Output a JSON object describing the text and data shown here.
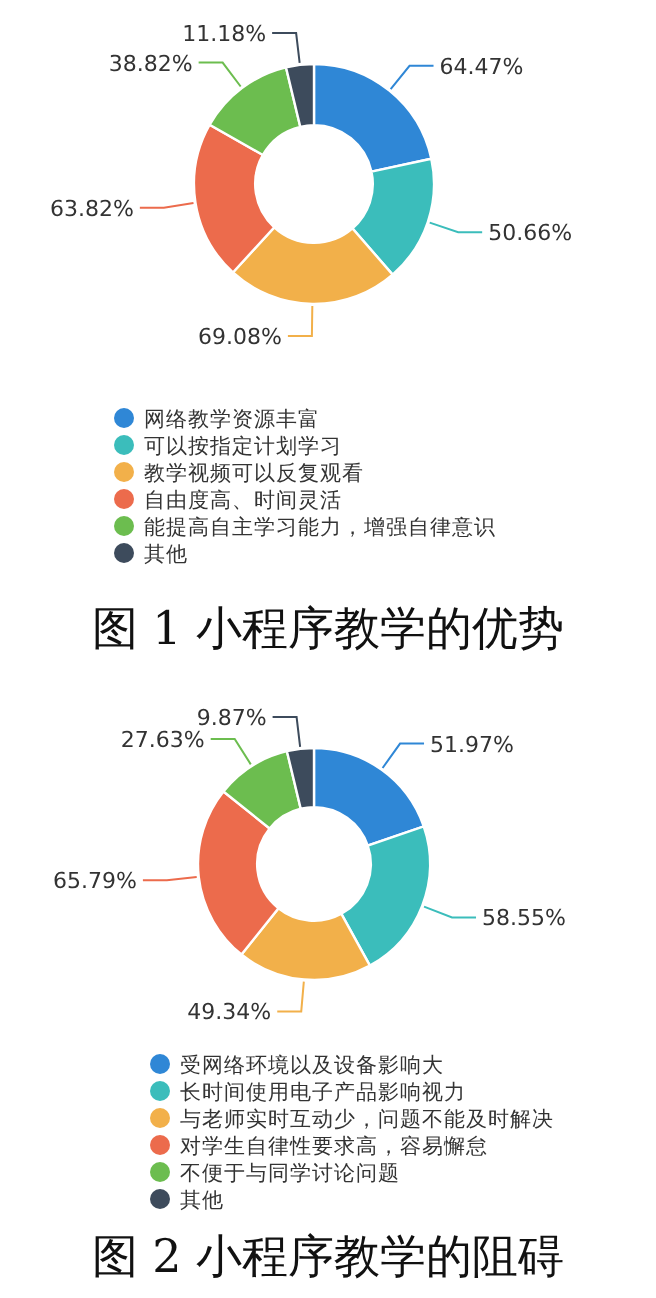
{
  "chart_data": [
    {
      "type": "donut",
      "title": "图 1 小程序教学的优势",
      "legend": "bottom",
      "categories": [
        "网络教学资源丰富",
        "可以按指定计划学习",
        "教学视频可以反复观看",
        "自由度高、时间灵活",
        "能提高自主学习能力，增强自律意识",
        "其他"
      ],
      "values": [
        64.47,
        50.66,
        69.08,
        63.82,
        38.82,
        11.18
      ],
      "value_labels": [
        "64.47%",
        "50.66%",
        "69.08%",
        "63.82%",
        "38.82%",
        "11.18%"
      ],
      "colors": [
        "#2f87d6",
        "#3bbdbb",
        "#f2b04a",
        "#ec6b4c",
        "#6cbd4f",
        "#3d4b5c"
      ]
    },
    {
      "type": "donut",
      "title": "图 2 小程序教学的阻碍",
      "legend": "bottom",
      "categories": [
        "受网络环境以及设备影响大",
        "长时间使用电子产品影响视力",
        "与老师实时互动少，问题不能及时解决",
        "对学生自律性要求高，容易懈怠",
        "不便于与同学讨论问题",
        "其他"
      ],
      "values": [
        51.97,
        58.55,
        49.34,
        65.79,
        27.63,
        9.87
      ],
      "value_labels": [
        "51.97%",
        "58.55%",
        "49.34%",
        "65.79%",
        "27.63%",
        "9.87%"
      ],
      "colors": [
        "#2f87d6",
        "#3bbdbb",
        "#f2b04a",
        "#ec6b4c",
        "#6cbd4f",
        "#3d4b5c"
      ]
    }
  ]
}
